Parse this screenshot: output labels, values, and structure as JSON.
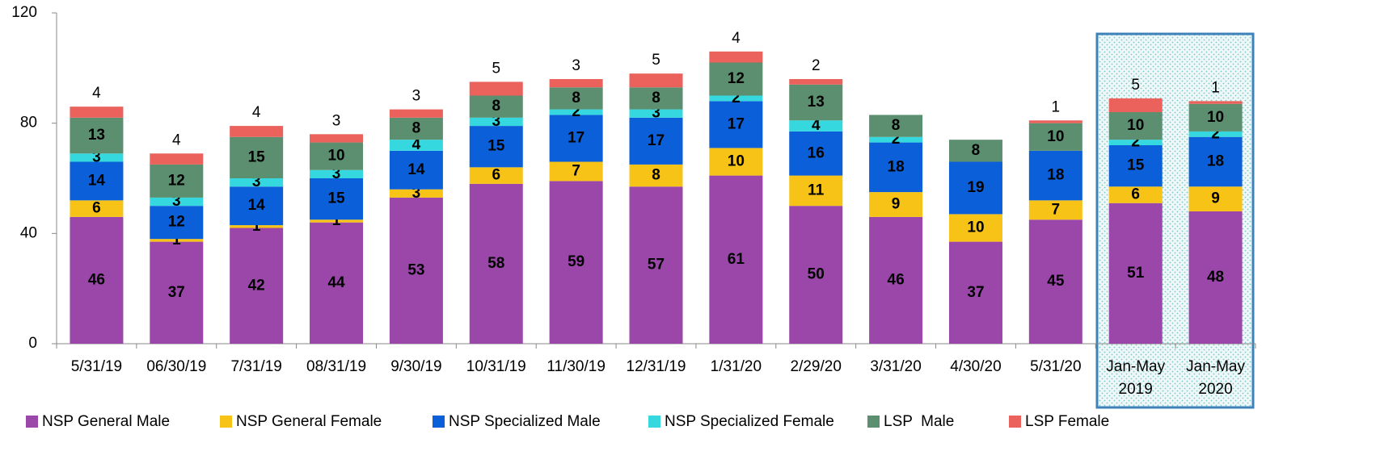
{
  "chart_data": {
    "type": "stacked_bar",
    "categories": [
      "5/31/19",
      "06/30/19",
      "7/31/19",
      "08/31/19",
      "9/30/19",
      "10/31/19",
      "11/30/19",
      "12/31/19",
      "1/31/20",
      "2/29/20",
      "3/31/20",
      "4/30/20",
      "5/31/20",
      [
        "Jan-May",
        "2019"
      ],
      [
        "Jan-May",
        "2020"
      ]
    ],
    "series": [
      {
        "name": "NSP General Male",
        "color": "#9b47aa",
        "values": [
          46,
          37,
          42,
          44,
          53,
          58,
          59,
          57,
          61,
          50,
          46,
          37,
          45,
          51,
          48
        ]
      },
      {
        "name": "NSP General Female",
        "color": "#f7c317",
        "values": [
          6,
          1,
          1,
          1,
          3,
          6,
          7,
          8,
          10,
          11,
          9,
          10,
          7,
          6,
          9
        ]
      },
      {
        "name": "NSP Specialized Male",
        "color": "#0b5fd8",
        "values": [
          14,
          12,
          14,
          15,
          14,
          15,
          17,
          17,
          17,
          16,
          18,
          19,
          18,
          15,
          18
        ]
      },
      {
        "name": "NSP Specialized Female",
        "color": "#35d8de",
        "values": [
          3,
          3,
          3,
          3,
          4,
          3,
          2,
          3,
          2,
          4,
          2,
          null,
          null,
          2,
          2
        ]
      },
      {
        "name": "LSP  Male",
        "color": "#5b8f70",
        "values": [
          13,
          12,
          15,
          10,
          8,
          8,
          8,
          8,
          12,
          13,
          8,
          8,
          10,
          10,
          10
        ]
      },
      {
        "name": "LSP Female",
        "color": "#ea625b",
        "values": [
          4,
          4,
          4,
          3,
          3,
          5,
          3,
          5,
          4,
          2,
          null,
          null,
          1,
          5,
          1
        ]
      }
    ],
    "ylim": [
      0,
      120
    ],
    "yticks": [
      0,
      40,
      80,
      120
    ],
    "grid": false,
    "legend": "bottom"
  }
}
